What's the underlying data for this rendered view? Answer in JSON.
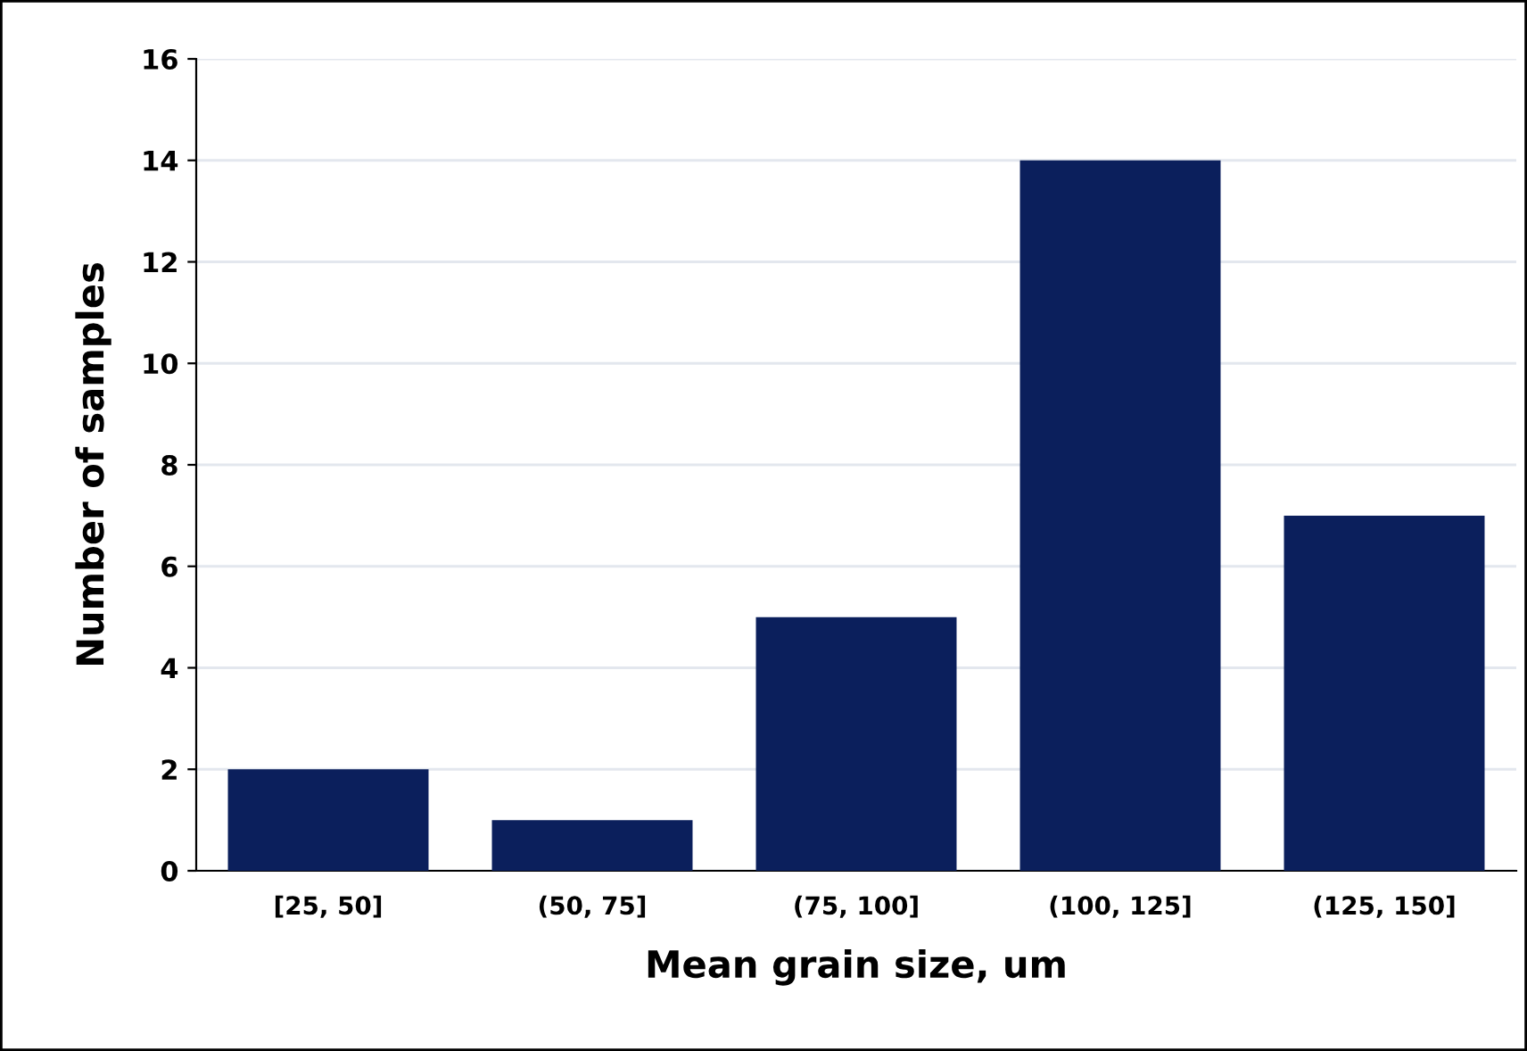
{
  "chart_data": {
    "type": "bar",
    "xlabel": "Mean grain size, um",
    "ylabel": "Number of samples",
    "categories": [
      "[25, 50]",
      "(50, 75]",
      "(75, 100]",
      "(100, 125]",
      "(125, 150]"
    ],
    "values": [
      2,
      1,
      5,
      14,
      7
    ],
    "color": "#0b1f5c",
    "ylim": [
      0,
      16
    ],
    "yticks": [
      0,
      2,
      4,
      6,
      8,
      10,
      12,
      14,
      16
    ],
    "grid": "y"
  }
}
